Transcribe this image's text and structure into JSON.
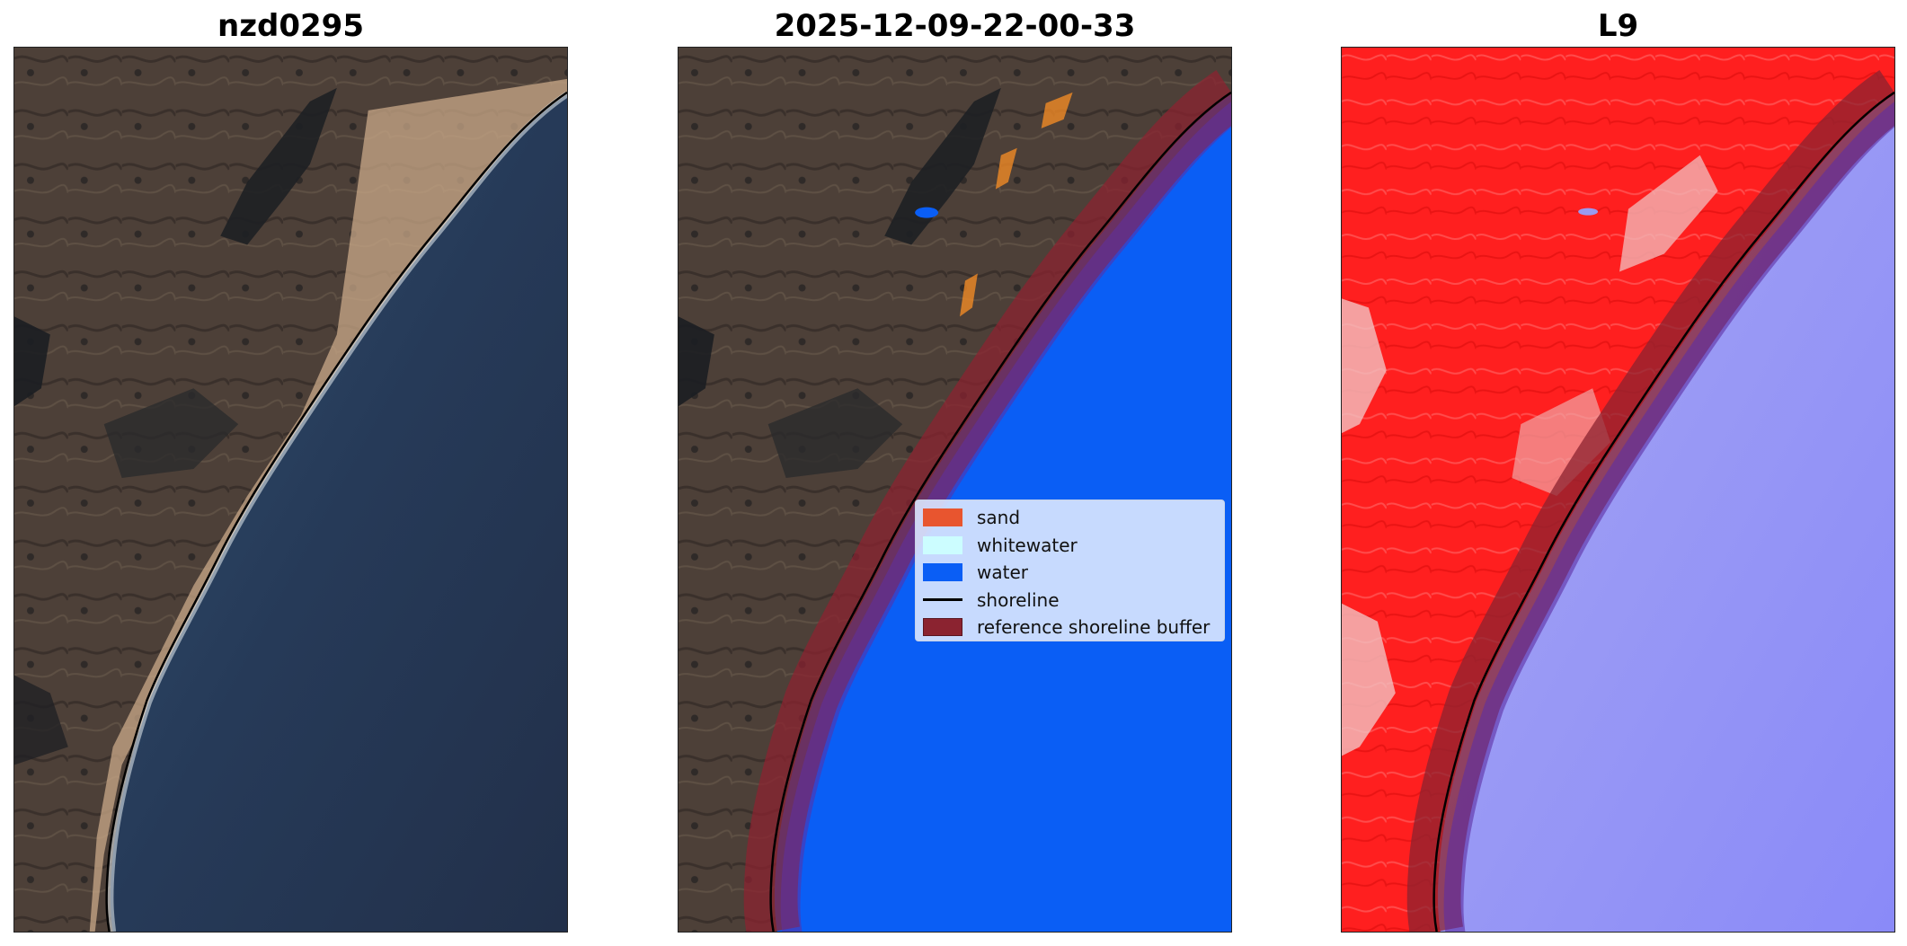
{
  "panels": [
    {
      "title": "nzd0295"
    },
    {
      "title": "2025-12-09-22-00-33"
    },
    {
      "title": "L9"
    }
  ],
  "legend": {
    "items": [
      {
        "label": "sand",
        "color": "#e8552f",
        "kind": "patch"
      },
      {
        "label": "whitewater",
        "color": "#ccfdff",
        "kind": "patch"
      },
      {
        "label": "water",
        "color": "#0a5ef5",
        "kind": "patch"
      },
      {
        "label": "shoreline",
        "color": "#000000",
        "kind": "line"
      },
      {
        "label": "reference shoreline buffer",
        "color": "#8b2330",
        "kind": "patch"
      }
    ]
  },
  "colors": {
    "land": "#4a3f38",
    "ocean": "#2b3c55",
    "sand_beach": "#c9a888",
    "classified_water": "#0a5ef5",
    "buffer": "#8b2330",
    "index_land": "#ff2020",
    "index_water": "#8e8ef5"
  }
}
